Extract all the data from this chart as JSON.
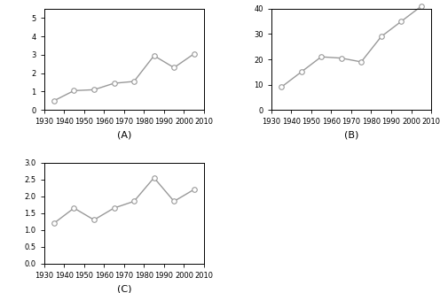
{
  "x": [
    1935,
    1945,
    1955,
    1965,
    1975,
    1985,
    1995,
    2005
  ],
  "A_values": [
    0.5,
    1.05,
    1.1,
    1.45,
    1.55,
    2.95,
    2.3,
    3.05
  ],
  "B_values": [
    9.0,
    15.0,
    21.0,
    20.5,
    19.0,
    29.0,
    35.0,
    41.0
  ],
  "C_values": [
    1.2,
    1.65,
    1.3,
    1.65,
    1.85,
    2.55,
    1.85,
    2.2
  ],
  "A_ylim": [
    0,
    5.5
  ],
  "B_ylim": [
    0,
    40
  ],
  "C_ylim": [
    0.0,
    3.0
  ],
  "A_yticks": [
    0,
    1,
    2,
    3,
    4,
    5
  ],
  "B_yticks": [
    0,
    10,
    20,
    30,
    40
  ],
  "C_yticks": [
    0.0,
    0.5,
    1.0,
    1.5,
    2.0,
    2.5,
    3.0
  ],
  "xlim": [
    1930,
    2010
  ],
  "xticks": [
    1930,
    1940,
    1950,
    1960,
    1970,
    1980,
    1990,
    2000,
    2010
  ],
  "xlabel_A": "(A)",
  "xlabel_B": "(B)",
  "xlabel_C": "(C)",
  "line_color": "#999999",
  "marker_color": "#999999",
  "marker": "o",
  "marker_size": 4,
  "marker_facecolor": "white",
  "line_width": 1.0,
  "tick_fontsize": 6,
  "label_fontsize": 8,
  "bg_color": "white"
}
